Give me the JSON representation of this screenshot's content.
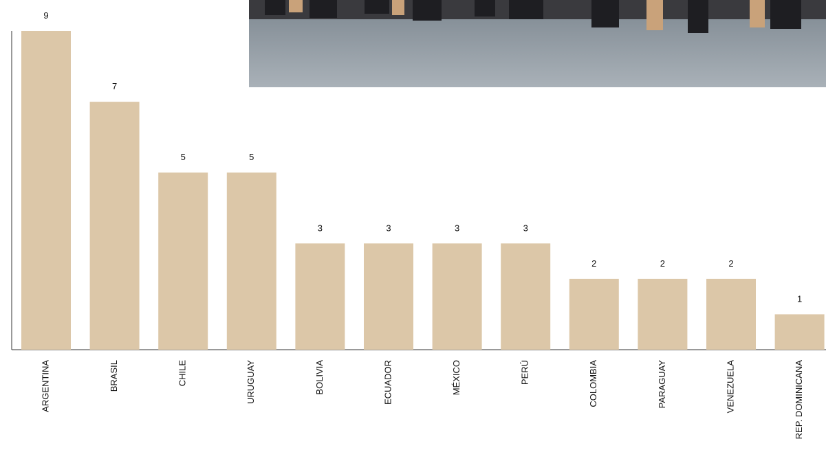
{
  "chart_data": {
    "type": "bar",
    "categories": [
      "ARGENTINA",
      "BRASIL",
      "CHILE",
      "URUGUAY",
      "BOLIVIA",
      "ECUADOR",
      "MÉXICO",
      "PERÚ",
      "COLOMBIA",
      "PARAGUAY",
      "VENEZUELA",
      "REP. DOMINICANA"
    ],
    "values": [
      9,
      7,
      5,
      5,
      3,
      3,
      3,
      3,
      2,
      2,
      2,
      1
    ],
    "color": "#dcc7a8",
    "ylim": [
      0,
      9
    ],
    "grid": false
  }
}
